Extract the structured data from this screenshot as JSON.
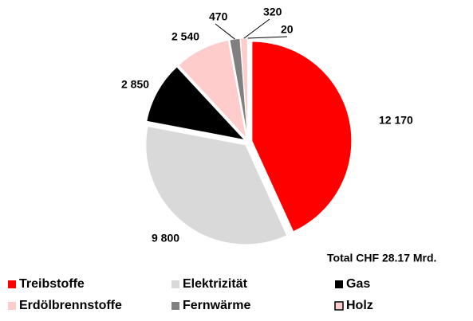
{
  "chart_data": {
    "type": "pie",
    "categories": [
      "Treibstoffe",
      "Elektrizität",
      "Gas",
      "Erdölbrennstoffe",
      "Fernwärme",
      "Holz",
      null
    ],
    "values": [
      12170,
      9800,
      2850,
      2540,
      470,
      320,
      20
    ],
    "value_labels": [
      "12 170",
      "9 800",
      "2 850",
      "2 540",
      "470",
      "320",
      "20"
    ],
    "colors": [
      "#ff0000",
      "#d9d9d9",
      "#000000",
      "#ffcccc",
      "#808080",
      "#ffcccc",
      "#800000"
    ],
    "annotation": "Total CHF 28.17 Mrd.",
    "legend": "bottom"
  }
}
